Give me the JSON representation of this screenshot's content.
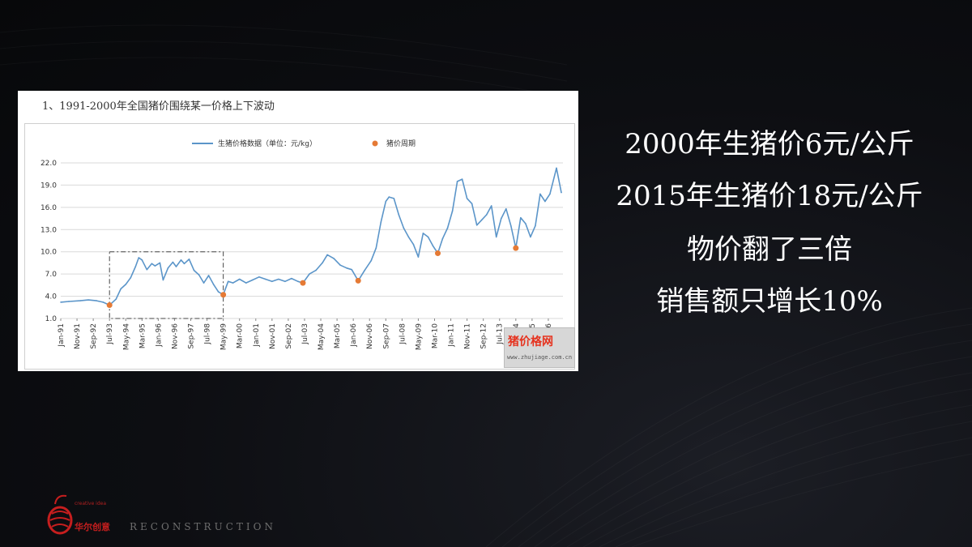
{
  "slide": {
    "headlines": [
      "2000年生猪价6元/公斤",
      "2015年生猪价18元/公斤",
      "物价翻了三倍",
      "销售额只增长10%"
    ],
    "brand": {
      "logo_text": "华尔创意",
      "logo_subtext": "creative idea",
      "tagline": "RECONSTRUCTION"
    },
    "colors": {
      "background": "#0b0c10",
      "line": "#5b95c9",
      "marker": "#e57a35",
      "logo": "#c61e1e"
    }
  },
  "chart_caption": "1、1991-2000年全国猪价围绕某一价格上下波动",
  "watermark": {
    "title": "猪价格网",
    "url": "www.zhujiage.com.cn"
  },
  "chart_data": {
    "type": "line",
    "title": "",
    "legend": [
      "生猪价格数据（单位：元/kg）",
      "猪价周期"
    ],
    "legend_position": "top-center",
    "ylim": [
      1.0,
      22.0
    ],
    "yticks": [
      "1.0",
      "4.0",
      "7.0",
      "10.0",
      "13.0",
      "16.0",
      "19.0",
      "22.0"
    ],
    "xticks": [
      "Jan-91",
      "Nov-91",
      "Sep-92",
      "Jul-93",
      "May-94",
      "Mar-95",
      "Jan-96",
      "Nov-96",
      "Sep-97",
      "Jul-98",
      "May-99",
      "Mar-00",
      "Jan-01",
      "Nov-01",
      "Sep-02",
      "Jul-03",
      "May-04",
      "Mar-05",
      "Jan-06",
      "Nov-06",
      "Sep-07",
      "Jul-08",
      "May-09",
      "Mar-10",
      "Jan-11",
      "Nov-11",
      "Sep-12",
      "Jul-13",
      "May-14",
      "Mar-15",
      "Jan-16"
    ],
    "grid": true,
    "series": [
      {
        "name": "生猪价格数据（单位：元/kg）",
        "style": "line",
        "color": "#5b95c9",
        "points": [
          [
            "1991-01",
            3.2
          ],
          [
            "1991-06",
            3.3
          ],
          [
            "1992-01",
            3.4
          ],
          [
            "1992-06",
            3.5
          ],
          [
            "1992-11",
            3.4
          ],
          [
            "1993-03",
            3.2
          ],
          [
            "1993-07",
            2.8
          ],
          [
            "1993-11",
            3.6
          ],
          [
            "1994-02",
            5.0
          ],
          [
            "1994-05",
            5.6
          ],
          [
            "1994-08",
            6.5
          ],
          [
            "1994-11",
            8.0
          ],
          [
            "1995-01",
            9.2
          ],
          [
            "1995-03",
            8.9
          ],
          [
            "1995-06",
            7.6
          ],
          [
            "1995-09",
            8.4
          ],
          [
            "1995-11",
            8.1
          ],
          [
            "1996-02",
            8.5
          ],
          [
            "1996-04",
            6.2
          ],
          [
            "1996-07",
            7.8
          ],
          [
            "1996-10",
            8.6
          ],
          [
            "1996-12",
            8.0
          ],
          [
            "1997-03",
            8.9
          ],
          [
            "1997-05",
            8.4
          ],
          [
            "1997-08",
            9.0
          ],
          [
            "1997-11",
            7.5
          ],
          [
            "1998-02",
            6.9
          ],
          [
            "1998-05",
            5.8
          ],
          [
            "1998-08",
            6.8
          ],
          [
            "1998-11",
            5.6
          ],
          [
            "1999-02",
            4.6
          ],
          [
            "1999-05",
            4.2
          ],
          [
            "1999-08",
            6.0
          ],
          [
            "1999-11",
            5.8
          ],
          [
            "2000-03",
            6.3
          ],
          [
            "2000-07",
            5.8
          ],
          [
            "2000-11",
            6.2
          ],
          [
            "2001-03",
            6.6
          ],
          [
            "2001-07",
            6.3
          ],
          [
            "2001-11",
            6.0
          ],
          [
            "2002-03",
            6.3
          ],
          [
            "2002-07",
            6.0
          ],
          [
            "2002-11",
            6.4
          ],
          [
            "2003-03",
            6.0
          ],
          [
            "2003-06",
            5.8
          ],
          [
            "2003-10",
            7.0
          ],
          [
            "2004-02",
            7.5
          ],
          [
            "2004-06",
            8.5
          ],
          [
            "2004-09",
            9.6
          ],
          [
            "2005-01",
            9.1
          ],
          [
            "2005-05",
            8.2
          ],
          [
            "2005-09",
            7.8
          ],
          [
            "2005-12",
            7.6
          ],
          [
            "2006-04",
            6.1
          ],
          [
            "2006-08",
            7.5
          ],
          [
            "2006-12",
            8.8
          ],
          [
            "2007-03",
            10.5
          ],
          [
            "2007-06",
            14.0
          ],
          [
            "2007-09",
            16.8
          ],
          [
            "2007-11",
            17.4
          ],
          [
            "2008-02",
            17.2
          ],
          [
            "2008-05",
            15.0
          ],
          [
            "2008-08",
            13.2
          ],
          [
            "2008-11",
            12.0
          ],
          [
            "2009-02",
            11.0
          ],
          [
            "2009-05",
            9.3
          ],
          [
            "2009-08",
            12.5
          ],
          [
            "2009-11",
            12.0
          ],
          [
            "2010-02",
            10.8
          ],
          [
            "2010-05",
            9.8
          ],
          [
            "2010-08",
            11.8
          ],
          [
            "2010-11",
            13.2
          ],
          [
            "2011-02",
            15.5
          ],
          [
            "2011-05",
            19.5
          ],
          [
            "2011-08",
            19.8
          ],
          [
            "2011-11",
            17.2
          ],
          [
            "2012-02",
            16.5
          ],
          [
            "2012-05",
            13.6
          ],
          [
            "2012-08",
            14.3
          ],
          [
            "2012-11",
            15.0
          ],
          [
            "2013-02",
            16.2
          ],
          [
            "2013-05",
            12.0
          ],
          [
            "2013-08",
            14.5
          ],
          [
            "2013-11",
            15.8
          ],
          [
            "2014-02",
            13.5
          ],
          [
            "2014-05",
            10.5
          ],
          [
            "2014-08",
            14.6
          ],
          [
            "2014-11",
            13.8
          ],
          [
            "2015-02",
            12.0
          ],
          [
            "2015-05",
            13.5
          ],
          [
            "2015-08",
            17.8
          ],
          [
            "2015-11",
            16.8
          ],
          [
            "2016-02",
            17.8
          ],
          [
            "2016-06",
            21.3
          ],
          [
            "2016-09",
            18.0
          ]
        ]
      },
      {
        "name": "猪价周期",
        "style": "marker",
        "color": "#e57a35",
        "points": [
          [
            "1993-07",
            2.8
          ],
          [
            "1999-05",
            4.2
          ],
          [
            "2003-06",
            5.8
          ],
          [
            "2006-04",
            6.1
          ],
          [
            "2010-05",
            9.8
          ],
          [
            "2014-05",
            10.5
          ]
        ]
      }
    ],
    "annotations": [
      {
        "type": "dashed-box",
        "x_range": [
          "1993-07",
          "1999-05"
        ],
        "y_range": [
          1.0,
          10.0
        ]
      }
    ]
  }
}
